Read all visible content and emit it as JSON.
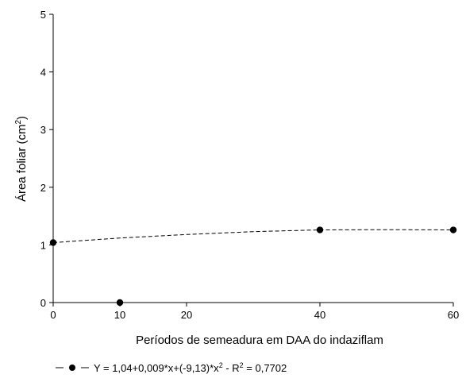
{
  "chart_data": {
    "type": "scatter",
    "xlabel": "Períodos de semeadura em DAA do indaziflam",
    "ylabel": {
      "main": "Área foliar (cm",
      "sup": "2",
      "close": ")"
    },
    "xlim": [
      0,
      60
    ],
    "ylim": [
      0,
      5
    ],
    "xticks": [
      "0",
      "10",
      "20",
      "40",
      "60"
    ],
    "xtick_values": [
      0,
      10,
      20,
      40,
      60
    ],
    "yticks": [
      "0",
      "1",
      "2",
      "3",
      "4",
      "5"
    ],
    "ytick_values": [
      0,
      1,
      2,
      3,
      4,
      5
    ],
    "grid": false,
    "series": [
      {
        "points": [
          {
            "x": 0,
            "y": 1.04
          },
          {
            "x": 10,
            "y": 0.0
          },
          {
            "x": 40,
            "y": 1.26
          },
          {
            "x": 60,
            "y": 1.26
          }
        ],
        "fit_line": [
          {
            "x": 0,
            "y": 1.04
          },
          {
            "x": 10,
            "y": 1.12
          },
          {
            "x": 20,
            "y": 1.18
          },
          {
            "x": 30,
            "y": 1.23
          },
          {
            "x": 40,
            "y": 1.26
          },
          {
            "x": 50,
            "y": 1.265
          },
          {
            "x": 60,
            "y": 1.26
          }
        ],
        "marker_color": "#000000",
        "line_color": "#000000",
        "line_style": "dashed"
      }
    ],
    "legend": {
      "placement": "bottom-left",
      "text_a": "Y = 1,04+0,009*x+(-9,13)*x",
      "text_sup1": "2",
      "text_b": " - R",
      "text_sup2": "2",
      "text_c": " = 0,7702"
    }
  }
}
